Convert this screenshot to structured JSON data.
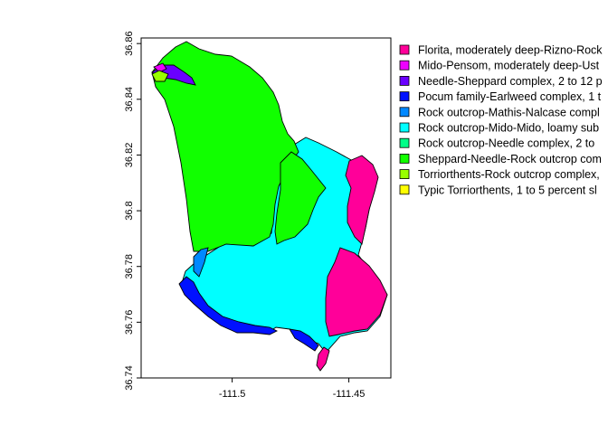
{
  "chart_data": {
    "type": "map",
    "title": "",
    "xlabel": "",
    "ylabel": "",
    "xlim": [
      -111.539,
      -111.432
    ],
    "ylim": [
      36.74,
      36.862
    ],
    "x_ticks": [
      {
        "value": -111.5,
        "label": "-111.5"
      },
      {
        "value": -111.45,
        "label": "-111.45"
      }
    ],
    "y_ticks": [
      {
        "value": 36.74,
        "label": "36.74"
      },
      {
        "value": 36.76,
        "label": "36.76"
      },
      {
        "value": 36.78,
        "label": "36.78"
      },
      {
        "value": 36.8,
        "label": "36.8"
      },
      {
        "value": 36.82,
        "label": "36.82"
      },
      {
        "value": 36.84,
        "label": "36.84"
      },
      {
        "value": 36.86,
        "label": "36.86"
      }
    ],
    "legend": {
      "placement": "right",
      "entries": [
        {
          "label": "Florita, moderately deep-Rizno-Rock",
          "color": "#ff0099"
        },
        {
          "label": "Mido-Pensom, moderately deep-Ust",
          "color": "#ee00ff"
        },
        {
          "label": "Needle-Sheppard complex, 2 to 12 p",
          "color": "#6a00ff"
        },
        {
          "label": "Pocum family-Earlweed complex, 1 t",
          "color": "#0011ff"
        },
        {
          "label": "Rock outcrop-Mathis-Nalcase compl",
          "color": "#0088ff"
        },
        {
          "label": "Rock outcrop-Mido-Mido, loamy sub",
          "color": "#00ffff"
        },
        {
          "label": "Rock outcrop-Needle complex, 2 to",
          "color": "#00ff88"
        },
        {
          "label": "Sheppard-Needle-Rock outcrop com",
          "color": "#11ff00"
        },
        {
          "label": "Torriorthents-Rock outcrop complex,",
          "color": "#99ff00"
        },
        {
          "label": "Typic Torriorthents, 1 to 5 percent sl",
          "color": "#ffff00"
        }
      ]
    }
  }
}
